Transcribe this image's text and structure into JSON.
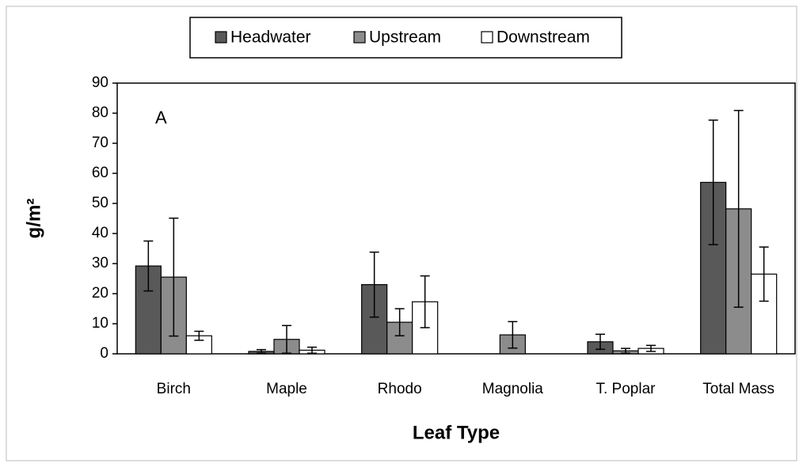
{
  "chart_data": {
    "type": "bar",
    "categories": [
      "Birch",
      "Maple",
      "Rhodo",
      "Magnolia",
      "T. Poplar",
      "Total Mass"
    ],
    "series": [
      {
        "name": "Headwater",
        "color": "#595959",
        "values": [
          29.2,
          0.8,
          23,
          0,
          4,
          57
        ],
        "errors": [
          8.3,
          0.6,
          10.8,
          0,
          2.5,
          20.7
        ]
      },
      {
        "name": "Upstream",
        "color": "#8c8c8c",
        "values": [
          25.5,
          4.8,
          10.5,
          6.3,
          1,
          48.2
        ],
        "errors": [
          19.6,
          4.6,
          4.5,
          4.4,
          0.8,
          32.7
        ]
      },
      {
        "name": "Downstream",
        "color": "#ffffff",
        "values": [
          6,
          1.2,
          17.3,
          0,
          1.8,
          26.5
        ],
        "errors": [
          1.5,
          1,
          8.6,
          0,
          1,
          9
        ]
      }
    ],
    "ylim": [
      0,
      90
    ],
    "yticks": [
      0,
      10,
      20,
      30,
      40,
      50,
      60,
      70,
      80,
      90
    ],
    "x_label": "Leaf Type",
    "y_label": "g/m²",
    "annotation": "A",
    "legend": "top",
    "grid": false
  }
}
